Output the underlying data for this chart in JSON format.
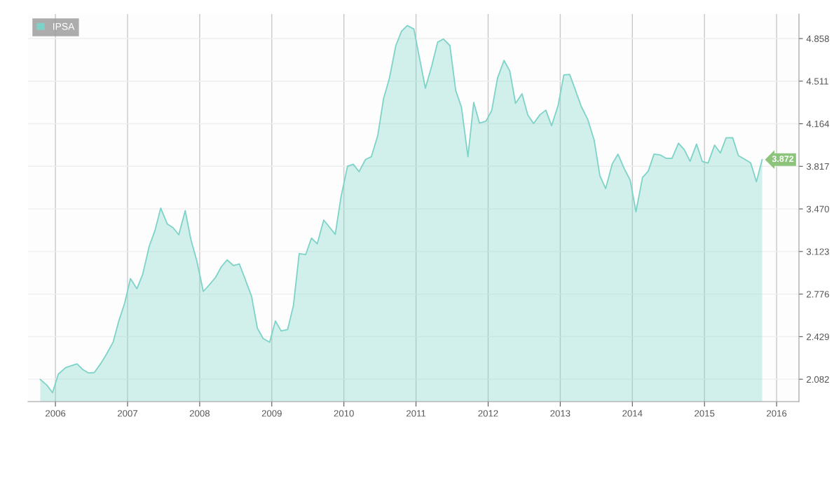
{
  "chart_data": {
    "type": "area",
    "x": [
      2005.79,
      2005.88,
      2005.96,
      2006.04,
      2006.14,
      2006.21,
      2006.3,
      2006.38,
      2006.46,
      2006.54,
      2006.63,
      2006.71,
      2006.8,
      2006.88,
      2006.96,
      2007.04,
      2007.13,
      2007.21,
      2007.3,
      2007.38,
      2007.46,
      2007.55,
      2007.63,
      2007.71,
      2007.8,
      2007.88,
      2007.96,
      2008.05,
      2008.13,
      2008.22,
      2008.3,
      2008.38,
      2008.47,
      2008.55,
      2008.63,
      2008.72,
      2008.8,
      2008.88,
      2008.97,
      2009.05,
      2009.13,
      2009.22,
      2009.3,
      2009.38,
      2009.47,
      2009.55,
      2009.63,
      2009.72,
      2009.8,
      2009.88,
      2009.96,
      2010.05,
      2010.13,
      2010.21,
      2010.3,
      2010.38,
      2010.47,
      2010.55,
      2010.63,
      2010.72,
      2010.8,
      2010.88,
      2010.97,
      2011.05,
      2011.13,
      2011.22,
      2011.3,
      2011.38,
      2011.47,
      2011.55,
      2011.63,
      2011.72,
      2011.8,
      2011.88,
      2011.97,
      2012.05,
      2012.13,
      2012.22,
      2012.3,
      2012.38,
      2012.47,
      2012.55,
      2012.63,
      2012.72,
      2012.8,
      2012.88,
      2012.97,
      2013.05,
      2013.13,
      2013.2,
      2013.29,
      2013.38,
      2013.47,
      2013.55,
      2013.63,
      2013.72,
      2013.8,
      2013.89,
      2013.97,
      2014.05,
      2014.14,
      2014.22,
      2014.3,
      2014.39,
      2014.47,
      2014.55,
      2014.64,
      2014.72,
      2014.8,
      2014.89,
      2014.97,
      2015.05,
      2015.14,
      2015.22,
      2015.3,
      2015.39,
      2015.47,
      2015.55,
      2015.64,
      2015.72,
      2015.8
    ],
    "series": [
      {
        "name": "IPSA",
        "color": "#7ed3c8",
        "values": [
          2080,
          2035,
          1973,
          2124,
          2176,
          2190,
          2208,
          2161,
          2133,
          2137,
          2212,
          2288,
          2385,
          2559,
          2702,
          2902,
          2820,
          2937,
          3165,
          3294,
          3477,
          3348,
          3318,
          3259,
          3456,
          3216,
          3048,
          2798,
          2849,
          2912,
          2998,
          3055,
          3008,
          3022,
          2899,
          2757,
          2498,
          2414,
          2384,
          2557,
          2476,
          2488,
          2683,
          3106,
          3098,
          3232,
          3185,
          3379,
          3322,
          3263,
          3569,
          3818,
          3834,
          3773,
          3873,
          3895,
          4069,
          4369,
          4532,
          4801,
          4919,
          4964,
          4936,
          4695,
          4454,
          4640,
          4829,
          4854,
          4801,
          4436,
          4299,
          3895,
          4338,
          4169,
          4185,
          4273,
          4536,
          4680,
          4595,
          4330,
          4409,
          4236,
          4166,
          4238,
          4275,
          4148,
          4313,
          4562,
          4566,
          4455,
          4307,
          4201,
          4032,
          3740,
          3636,
          3835,
          3916,
          3795,
          3704,
          3446,
          3725,
          3778,
          3916,
          3909,
          3882,
          3882,
          4005,
          3952,
          3858,
          3998,
          3856,
          3844,
          3990,
          3926,
          4049,
          4051,
          3905,
          3877,
          3846,
          3691,
          3872
        ]
      }
    ],
    "xlim": [
      2005.62,
      2016.31
    ],
    "xticks": [
      2006,
      2007,
      2008,
      2009,
      2010,
      2011,
      2012,
      2013,
      2014,
      2015,
      2016
    ],
    "ylim": [
      1900,
      5058
    ],
    "yticks": [
      {
        "value": 2082,
        "label": "2.082"
      },
      {
        "value": 2429,
        "label": "2.429"
      },
      {
        "value": 2776,
        "label": "2.776"
      },
      {
        "value": 3123,
        "label": "3.123"
      },
      {
        "value": 3470,
        "label": "3.470"
      },
      {
        "value": 3817,
        "label": "3.817"
      },
      {
        "value": 4164,
        "label": "4.164"
      },
      {
        "value": 4511,
        "label": "4.511"
      },
      {
        "value": 4858,
        "label": "4.858"
      }
    ],
    "annotations": [
      {
        "text": "3.872",
        "x": 2015.8,
        "y": 3872
      }
    ],
    "grid": true,
    "legend": "top left"
  }
}
